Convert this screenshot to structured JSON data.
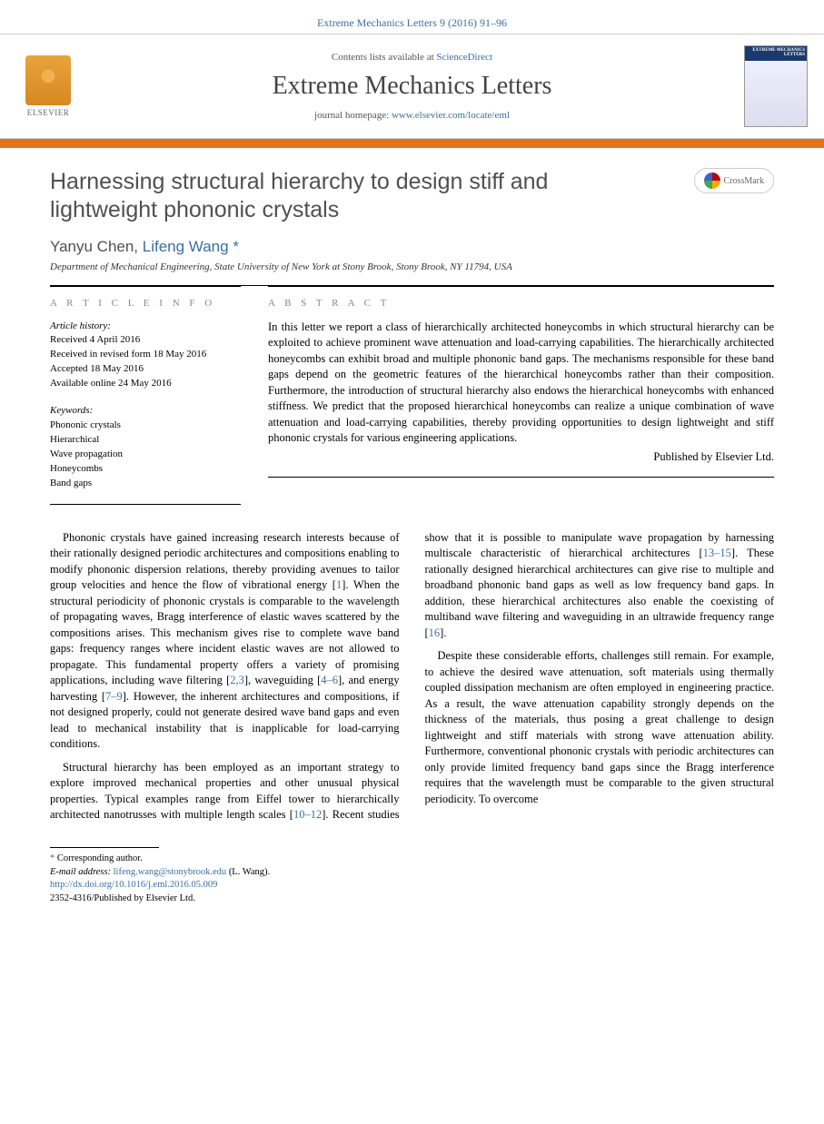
{
  "header": {
    "citation": "Extreme Mechanics Letters 9 (2016) 91–96",
    "contents_prefix": "Contents lists available at ",
    "contents_link": "ScienceDirect",
    "journal_name": "Extreme Mechanics Letters",
    "homepage_prefix": "journal homepage: ",
    "homepage_url": "www.elsevier.com/locate/eml",
    "publisher_logo_text": "ELSEVIER",
    "cover_label": "EXTREME MECHANICS LETTERS"
  },
  "crossmark": {
    "label": "CrossMark"
  },
  "article": {
    "title": "Harnessing structural hierarchy to design stiff and lightweight phononic crystals",
    "authors_plain": "Yanyu Chen, Lifeng Wang",
    "author1": "Yanyu Chen, ",
    "author2": "Lifeng Wang",
    "corr_marker": "*",
    "affiliation": "Department of Mechanical Engineering, State University of New York at Stony Brook, Stony Brook, NY 11794, USA"
  },
  "info": {
    "heading": "A R T I C L E   I N F O",
    "history_label": "Article history:",
    "received": "Received 4 April 2016",
    "revised": "Received in revised form 18 May 2016",
    "accepted": "Accepted 18 May 2016",
    "online": "Available online 24 May 2016",
    "keywords_label": "Keywords:",
    "keywords": [
      "Phononic crystals",
      "Hierarchical",
      "Wave propagation",
      "Honeycombs",
      "Band gaps"
    ]
  },
  "abstract": {
    "heading": "A B S T R A C T",
    "text": "In this letter we report a class of hierarchically architected honeycombs in which structural hierarchy can be exploited to achieve prominent wave attenuation and load-carrying capabilities. The hierarchically architected honeycombs can exhibit broad and multiple phononic band gaps. The mechanisms responsible for these band gaps depend on the geometric features of the hierarchical honeycombs rather than their composition. Furthermore, the introduction of structural hierarchy also endows the hierarchical honeycombs with enhanced stiffness. We predict that the proposed hierarchical honeycombs can realize a unique combination of wave attenuation and load-carrying capabilities, thereby providing opportunities to design lightweight and stiff phononic crystals for various engineering applications.",
    "published_by": "Published by Elsevier Ltd."
  },
  "body": {
    "p1a": "Phononic crystals have gained increasing research interests because of their rationally designed periodic architectures and compositions enabling to modify phononic dispersion relations, thereby providing avenues to tailor group velocities and hence the flow of vibrational energy [",
    "p1_ref1": "1",
    "p1b": "]. When the structural periodicity of phononic crystals is comparable to the wavelength of propagating waves, Bragg interference of elastic waves scattered by the compositions arises. This mechanism gives rise to complete wave band gaps: frequency ranges where incident elastic waves are not allowed to propagate. This fundamental property offers a variety of promising applications, including wave filtering [",
    "p1_ref2": "2,3",
    "p1c": "], waveguiding [",
    "p1_ref3": "4–6",
    "p1d": "], and energy harvesting [",
    "p1_ref4": "7–9",
    "p1e": "]. However, the inherent architectures and compositions, if not designed properly, could not generate desired wave band gaps and even lead to mechanical instability that is inapplicable for load-carrying conditions.",
    "p2a": "Structural hierarchy has been employed as an important strategy to explore improved mechanical properties and other unusual physical properties. Typical examples range from Eiffel tower to hierarchically architected nanotrusses with multiple length scales [",
    "p2_ref1": "10–12",
    "p2b": "]. Recent studies show that it is possible to manipulate wave propagation by harnessing multiscale characteristic of hierarchical architectures [",
    "p2_ref2": "13–15",
    "p2c": "]. These rationally designed hierarchical architectures can give rise to multiple and broadband phononic band gaps as well as low frequency band gaps. In addition, these hierarchical architectures also enable the coexisting of multiband wave filtering and waveguiding in an ultrawide frequency range [",
    "p2_ref3": "16",
    "p2d": "].",
    "p3": "Despite these considerable efforts, challenges still remain. For example, to achieve the desired wave attenuation, soft materials using thermally coupled dissipation mechanism are often employed in engineering practice. As a result, the wave attenuation capability strongly depends on the thickness of the materials, thus posing a great challenge to design lightweight and stiff materials with strong wave attenuation ability. Furthermore, conventional phononic crystals with periodic architectures can only provide limited frequency band gaps since the Bragg interference requires that the wavelength must be comparable to the given structural periodicity. To overcome"
  },
  "footer": {
    "corr_label": "Corresponding author.",
    "email_label": "E-mail address:",
    "email": "lifeng.wang@stonybrook.edu",
    "email_suffix": " (L. Wang).",
    "doi": "http://dx.doi.org/10.1016/j.eml.2016.05.009",
    "issn_line": "2352-4316/Published by Elsevier Ltd."
  },
  "colors": {
    "link": "#3a6ea5",
    "accent_bar": "#e9711c",
    "heading_gray": "#888888",
    "title_gray": "#505050"
  }
}
